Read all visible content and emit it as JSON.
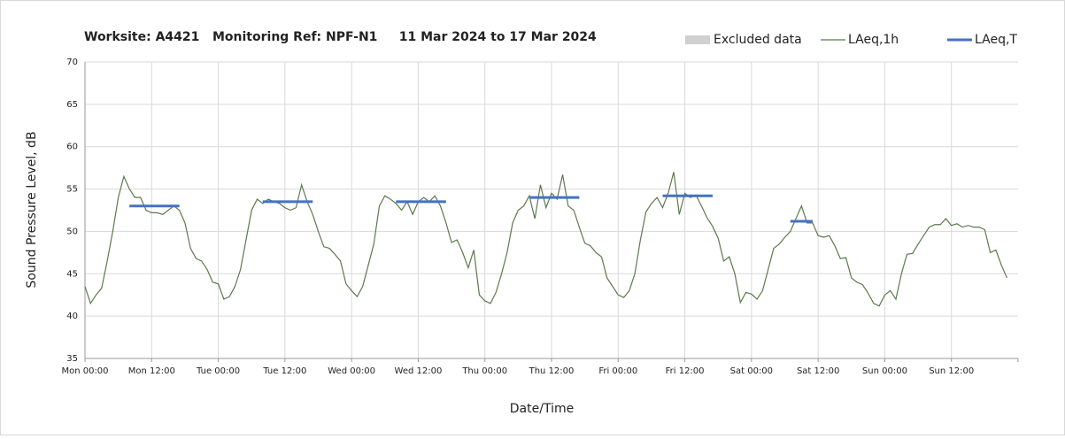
{
  "chart_data": {
    "type": "line",
    "title": "Worksite: A4421   Monitoring Ref: NPF-N1     11 Mar 2024 to 17 Mar 2024",
    "xlabel": "Date/Time",
    "ylabel": "Sound Pressure Level, dB",
    "excluded_label": "Excluded data",
    "excluded_color": "#d0d0d0",
    "categories": [
      "Mon 00:00",
      null,
      null,
      null,
      null,
      null,
      null,
      null,
      null,
      null,
      null,
      null,
      "Mon 12:00",
      null,
      null,
      null,
      null,
      null,
      null,
      null,
      null,
      null,
      null,
      null,
      "Tue 00:00",
      null,
      null,
      null,
      null,
      null,
      null,
      null,
      null,
      null,
      null,
      null,
      "Tue 12:00",
      null,
      null,
      null,
      null,
      null,
      null,
      null,
      null,
      null,
      null,
      null,
      "Wed 00:00",
      null,
      null,
      null,
      null,
      null,
      null,
      null,
      null,
      null,
      null,
      null,
      "Wed 12:00",
      null,
      null,
      null,
      null,
      null,
      null,
      null,
      null,
      null,
      null,
      null,
      "Thu 00:00",
      null,
      null,
      null,
      null,
      null,
      null,
      null,
      null,
      null,
      null,
      null,
      "Thu 12:00",
      null,
      null,
      null,
      null,
      null,
      null,
      null,
      null,
      null,
      null,
      null,
      "Fri 00:00",
      null,
      null,
      null,
      null,
      null,
      null,
      null,
      null,
      null,
      null,
      null,
      "Fri 12:00",
      null,
      null,
      null,
      null,
      null,
      null,
      null,
      null,
      null,
      null,
      null,
      "Sat 00:00",
      null,
      null,
      null,
      null,
      null,
      null,
      null,
      null,
      null,
      null,
      null,
      "Sat 12:00",
      null,
      null,
      null,
      null,
      null,
      null,
      null,
      null,
      null,
      null,
      null,
      "Sun 00:00",
      null,
      null,
      null,
      null,
      null,
      null,
      null,
      null,
      null,
      null,
      null,
      "Sun 12:00",
      null,
      null,
      null,
      null,
      null,
      null,
      null,
      null,
      null,
      null,
      null
    ],
    "series": [
      {
        "name": "LAeq,1h",
        "color": "#5b7a4c",
        "width": 1.2,
        "values": [
          43.5,
          41.5,
          42.5,
          43.3,
          46.5,
          50,
          54,
          56.5,
          55,
          54,
          54,
          52.5,
          52.2,
          52.2,
          52,
          52.5,
          53,
          52.5,
          51,
          48,
          46.8,
          46.5,
          45.5,
          44,
          43.8,
          42,
          42.3,
          43.5,
          45.5,
          49,
          52.5,
          53.8,
          53.3,
          53.8,
          53.5,
          53.3,
          52.8,
          52.5,
          52.8,
          55.5,
          53.5,
          52,
          50,
          48.2,
          48,
          47.3,
          46.5,
          43.8,
          43,
          42.3,
          43.5,
          46,
          48.5,
          53,
          54.2,
          53.8,
          53.3,
          52.5,
          53.5,
          52,
          53.5,
          54,
          53.5,
          54.2,
          53,
          51,
          48.7,
          49,
          47.5,
          45.7,
          47.8,
          42.5,
          41.8,
          41.5,
          42.8,
          45,
          47.5,
          51,
          52.5,
          53,
          54.2,
          51.5,
          55.5,
          52.8,
          54.5,
          53.8,
          56.7,
          53,
          52.5,
          50.5,
          48.6,
          48.3,
          47.5,
          47,
          44.5,
          43.5,
          42.5,
          42.2,
          43,
          45,
          49,
          52.3,
          53.3,
          54,
          52.8,
          54.5,
          57,
          52,
          54.5,
          54,
          54.3,
          53,
          51.6,
          50.6,
          49.2,
          46.5,
          47,
          45,
          41.6,
          42.8,
          42.6,
          42,
          43,
          45.5,
          48,
          48.5,
          49.3,
          50,
          51.5,
          53,
          51,
          51,
          49.5,
          49.3,
          49.5,
          48.3,
          46.8,
          46.9,
          44.5,
          44,
          43.7,
          42.7,
          41.5,
          41.2,
          42.5,
          43,
          42,
          45,
          47.3,
          47.4,
          48.5,
          49.5,
          50.5,
          50.8,
          50.8,
          51.5,
          50.7,
          50.9,
          50.5,
          50.7,
          50.5,
          50.5,
          50.2,
          47.5,
          47.8,
          46,
          44.5,
          null
        ]
      },
      {
        "name": "LAeq,T",
        "color": "#4472c4",
        "width": 3,
        "values": [
          null,
          null,
          null,
          null,
          null,
          null,
          null,
          null,
          53,
          53,
          53,
          53,
          53,
          53,
          53,
          53,
          53,
          53,
          null,
          null,
          null,
          null,
          null,
          null,
          null,
          null,
          null,
          null,
          null,
          null,
          null,
          null,
          53.5,
          53.5,
          53.5,
          53.5,
          53.5,
          53.5,
          53.5,
          53.5,
          53.5,
          53.5,
          null,
          null,
          null,
          null,
          null,
          null,
          null,
          null,
          null,
          null,
          null,
          null,
          null,
          null,
          53.5,
          53.5,
          53.5,
          53.5,
          53.5,
          53.5,
          53.5,
          53.5,
          53.5,
          53.5,
          null,
          null,
          null,
          null,
          null,
          null,
          null,
          null,
          null,
          null,
          null,
          null,
          null,
          null,
          54,
          54,
          54,
          54,
          54,
          54,
          54,
          54,
          54,
          54,
          null,
          null,
          null,
          null,
          null,
          null,
          null,
          null,
          null,
          null,
          null,
          null,
          null,
          null,
          54.2,
          54.2,
          54.2,
          54.2,
          54.2,
          54.2,
          54.2,
          54.2,
          54.2,
          54.2,
          null,
          null,
          null,
          null,
          null,
          null,
          null,
          null,
          null,
          null,
          null,
          null,
          null,
          51.2,
          51.2,
          51.2,
          51.2,
          51.2,
          null,
          null,
          null,
          null,
          null,
          null,
          null,
          null,
          null,
          null,
          null,
          null,
          null,
          null,
          null,
          null,
          null,
          null,
          null,
          null,
          null,
          null,
          null,
          null,
          null,
          null,
          null,
          null,
          null,
          null,
          null,
          null,
          null,
          null,
          null,
          null
        ]
      }
    ],
    "ylim": [
      35,
      70
    ],
    "yticks": [
      35,
      40,
      45,
      50,
      55,
      60,
      65,
      70
    ],
    "grid": true,
    "legend": "top-right"
  }
}
